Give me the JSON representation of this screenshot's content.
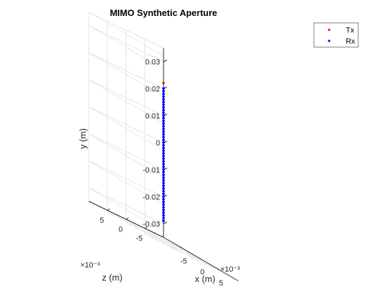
{
  "chart_data": {
    "type": "scatter",
    "projection": "3d",
    "title": "MIMO Synthetic Aperture",
    "xlabel": "x (m)",
    "ylabel": "y (m)",
    "zlabel": "z (m)",
    "x_exponent": "×10⁻³",
    "z_exponent": "×10⁻³",
    "xlim": [
      -0.01,
      0.01
    ],
    "ylim": [
      -0.035,
      0.035
    ],
    "zlim": [
      -0.01,
      0.01
    ],
    "x_ticks": [
      -5,
      0,
      5
    ],
    "y_ticks": [
      -0.03,
      -0.02,
      -0.01,
      0,
      0.01,
      0.02,
      0.03
    ],
    "y_tick_labels": [
      "-0.03",
      "-0.02",
      "-0.01",
      "0",
      "0.01",
      "0.02",
      "0.03"
    ],
    "z_ticks": [
      -5,
      0,
      5
    ],
    "grid": true,
    "legend_position": "top-right",
    "series": [
      {
        "name": "Tx",
        "color": "#ff0000",
        "x": [
          0
        ],
        "y": [
          0.0235
        ],
        "z": [
          0
        ]
      },
      {
        "name": "Rx",
        "color": "#0000ff",
        "x": [
          0
        ],
        "y_start": -0.0275,
        "y_end": 0.0215,
        "count": 50,
        "z": [
          0
        ]
      }
    ]
  }
}
